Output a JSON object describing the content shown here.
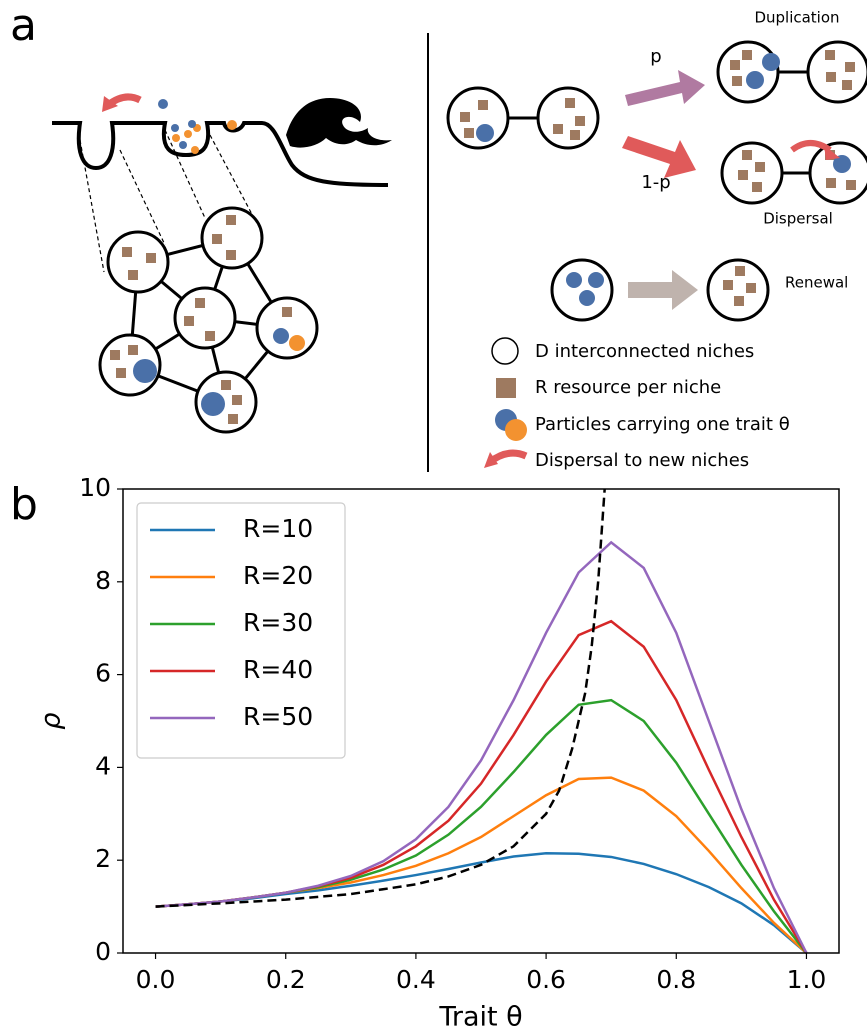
{
  "panel_a": {
    "label": "a",
    "arrows": {
      "p": "p",
      "one_minus_p": "1-p"
    },
    "events": {
      "duplication": "Duplication",
      "dispersal": "Dispersal",
      "renewal": "Renewal"
    },
    "legend": [
      "D interconnected niches",
      "R resource per niche",
      "Particles carrying one trait θ",
      "Dispersal to new niches"
    ]
  },
  "panel_b": {
    "label": "b"
  },
  "chart_data": {
    "type": "line",
    "x_label": "Trait θ",
    "y_label": "ρ",
    "x": [
      0,
      0.05,
      0.1,
      0.15,
      0.2,
      0.25,
      0.3,
      0.35,
      0.4,
      0.45,
      0.5,
      0.55,
      0.6,
      0.65,
      0.7,
      0.75,
      0.8,
      0.85,
      0.9,
      0.95,
      1.0
    ],
    "series": [
      {
        "name": "R=10",
        "color": "#1f77b4",
        "values": [
          1,
          1.05,
          1.11,
          1.18,
          1.27,
          1.35,
          1.45,
          1.56,
          1.68,
          1.81,
          1.95,
          2.08,
          2.15,
          2.14,
          2.07,
          1.92,
          1.7,
          1.42,
          1.07,
          0.6,
          0
        ]
      },
      {
        "name": "R=20",
        "color": "#ff7f0e",
        "values": [
          1,
          1.05,
          1.11,
          1.2,
          1.3,
          1.4,
          1.52,
          1.68,
          1.88,
          2.15,
          2.5,
          2.95,
          3.4,
          3.75,
          3.78,
          3.5,
          2.95,
          2.2,
          1.4,
          0.65,
          0
        ]
      },
      {
        "name": "R=30",
        "color": "#2ca02c",
        "values": [
          1,
          1.05,
          1.11,
          1.2,
          1.3,
          1.42,
          1.58,
          1.8,
          2.1,
          2.55,
          3.15,
          3.9,
          4.7,
          5.35,
          5.45,
          5.0,
          4.1,
          3.0,
          1.9,
          0.9,
          0
        ]
      },
      {
        "name": "R=40",
        "color": "#d62728",
        "values": [
          1,
          1.05,
          1.11,
          1.2,
          1.3,
          1.44,
          1.62,
          1.9,
          2.3,
          2.85,
          3.65,
          4.7,
          5.85,
          6.85,
          7.15,
          6.6,
          5.45,
          3.95,
          2.5,
          1.15,
          0
        ]
      },
      {
        "name": "R=50",
        "color": "#9467bd",
        "values": [
          1,
          1.05,
          1.11,
          1.2,
          1.3,
          1.45,
          1.66,
          1.98,
          2.45,
          3.15,
          4.15,
          5.45,
          6.9,
          8.2,
          8.85,
          8.3,
          6.9,
          5.0,
          3.1,
          1.4,
          0
        ]
      },
      {
        "color": "#000000",
        "dashed": true,
        "x": [
          0,
          0.1,
          0.2,
          0.3,
          0.4,
          0.45,
          0.5,
          0.55,
          0.6,
          0.62,
          0.64,
          0.66,
          0.67,
          0.68,
          0.69
        ],
        "values": [
          1,
          1.07,
          1.15,
          1.27,
          1.48,
          1.65,
          1.9,
          2.3,
          3.0,
          3.5,
          4.4,
          5.6,
          6.6,
          8.0,
          10.0
        ]
      }
    ],
    "xlim": [
      -0.05,
      1.05
    ],
    "ylim": [
      0,
      10
    ],
    "xticks": [
      {
        "value": 0,
        "label": "0.0"
      },
      {
        "value": 0.2,
        "label": "0.2"
      },
      {
        "value": 0.4,
        "label": "0.4"
      },
      {
        "value": 0.6,
        "label": "0.6"
      },
      {
        "value": 0.8,
        "label": "0.8"
      },
      {
        "value": 1.0,
        "label": "1.0"
      }
    ],
    "yticks": [
      0,
      2,
      4,
      6,
      8,
      10
    ],
    "grid": false,
    "legend": "upper left"
  }
}
